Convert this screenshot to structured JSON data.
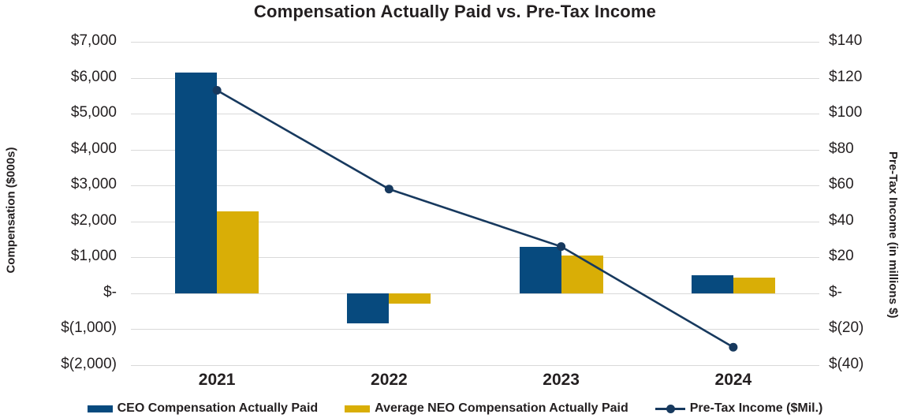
{
  "title": "Compensation Actually Paid vs. Pre-Tax Income",
  "colors": {
    "ceo_bar": "#074A7E",
    "neo_bar": "#D9AE06",
    "line": "#17395E",
    "grid": "#D9D9D9",
    "text": "#231F20"
  },
  "chart_data": {
    "type": "bar",
    "subtype": "combo-bar-line-dual-axis",
    "title": "Compensation Actually Paid vs. Pre-Tax Income",
    "categories": [
      "2021",
      "2022",
      "2023",
      "2024"
    ],
    "series": [
      {
        "name": "CEO Compensation Actually Paid",
        "render": "bar",
        "axis": "left",
        "color": "#074A7E",
        "values": [
          6150,
          -840,
          1290,
          500
        ]
      },
      {
        "name": "Average NEO Compensation Actually Paid",
        "render": "bar",
        "axis": "left",
        "color": "#D9AE06",
        "values": [
          2270,
          -290,
          1060,
          430
        ]
      },
      {
        "name": "Pre-Tax Income ($Mil.)",
        "render": "line",
        "axis": "right",
        "color": "#17395E",
        "values": [
          113,
          58,
          26,
          -30
        ]
      }
    ],
    "left_axis": {
      "label": "Compensation ($000s)",
      "max": 7000,
      "min": -2000,
      "step": 1000,
      "ticks": [
        "$7,000",
        "$6,000",
        "$5,000",
        "$4,000",
        "$3,000",
        "$2,000",
        "$1,000",
        "$-",
        "$(1,000)",
        "$(2,000)"
      ]
    },
    "right_axis": {
      "label": "Pre-Tax Income (in millions $)",
      "max": 140,
      "min": -40,
      "step": 20,
      "ticks": [
        "$140",
        "$120",
        "$100",
        "$80",
        "$60",
        "$40",
        "$20",
        "$-",
        "$(20)",
        "$(40)"
      ]
    },
    "grid": true,
    "legend_position": "bottom"
  }
}
